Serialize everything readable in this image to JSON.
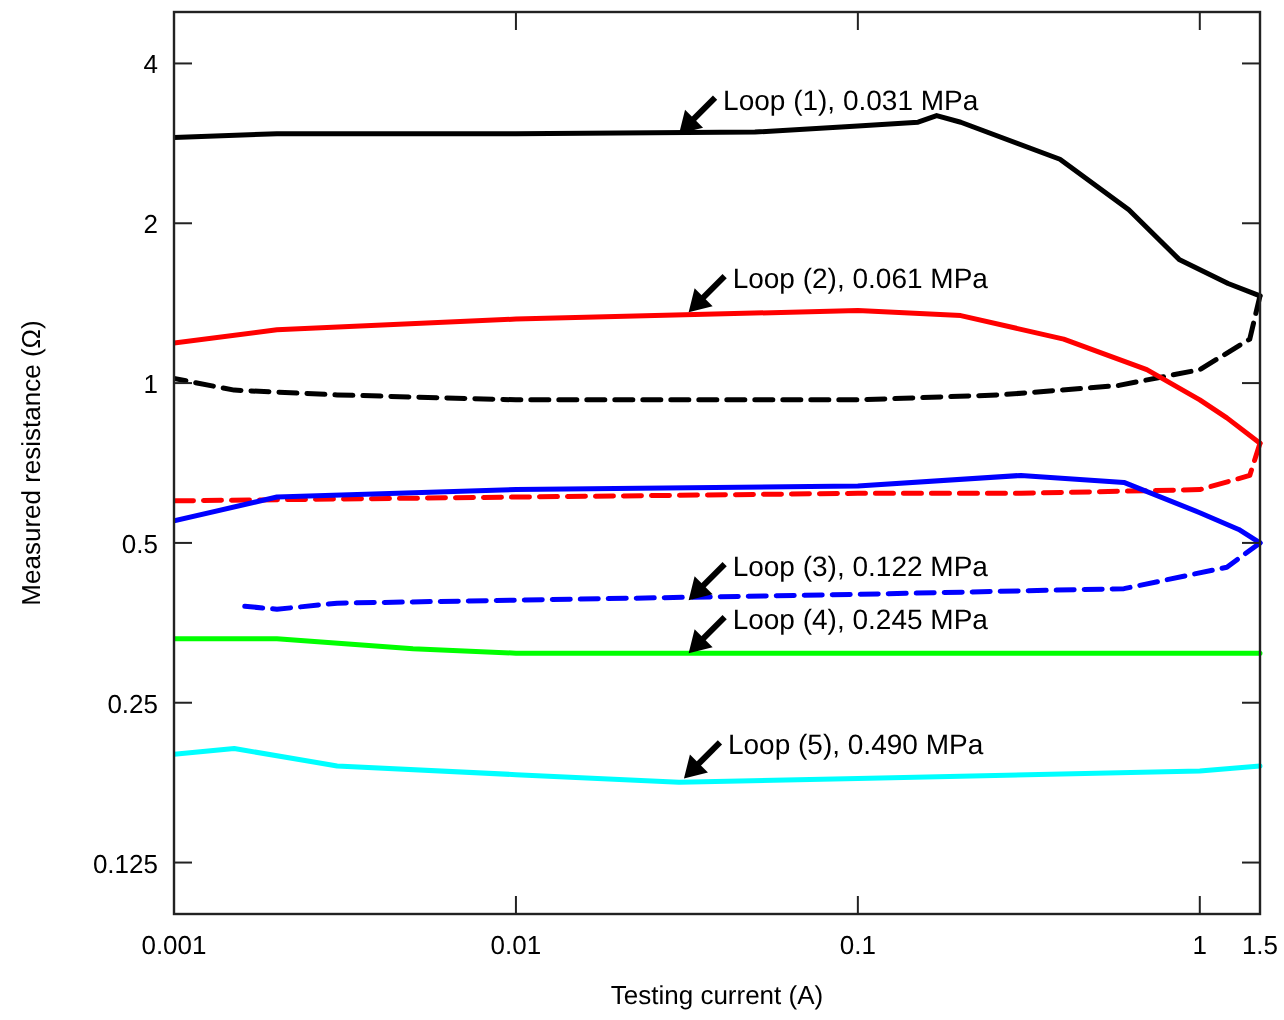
{
  "chart_data": {
    "type": "line",
    "xlabel": "Testing current (A)",
    "ylabel": "Measured resistance (Ω)",
    "log": "xy",
    "xlim": [
      0.001,
      1.5
    ],
    "ylim": [
      0.1,
      5
    ],
    "xticks": [
      0.001,
      0.01,
      0.1,
      1,
      1.5
    ],
    "yticks": [
      0.125,
      0.25,
      0.5,
      1,
      2,
      4
    ],
    "grid": false,
    "marker": "none",
    "series": [
      {
        "color": "#000000",
        "line_style": "solid",
        "x": [
          0.001,
          0.002,
          0.01,
          0.05,
          0.1,
          0.15,
          0.17,
          0.2,
          0.39,
          0.62,
          0.87,
          1.21,
          1.5
        ],
        "values": [
          2.9,
          2.95,
          2.95,
          2.97,
          3.05,
          3.1,
          3.19,
          3.1,
          2.64,
          2.12,
          1.71,
          1.54,
          1.46
        ]
      },
      {
        "color": "#000000",
        "line_style": "dashed",
        "x": [
          1.5,
          1.4,
          1.0,
          0.58,
          0.26,
          0.1,
          0.01,
          0.003,
          0.0015,
          0.001
        ],
        "values": [
          1.46,
          1.21,
          1.06,
          0.99,
          0.95,
          0.93,
          0.93,
          0.95,
          0.97,
          1.02
        ]
      },
      {
        "color": "#ff0000",
        "line_style": "solid",
        "x": [
          0.001,
          0.002,
          0.01,
          0.1,
          0.2,
          0.4,
          0.7,
          1.0,
          1.2,
          1.5
        ],
        "values": [
          1.19,
          1.26,
          1.32,
          1.37,
          1.34,
          1.21,
          1.06,
          0.93,
          0.86,
          0.77
        ]
      },
      {
        "color": "#ff0000",
        "line_style": "dashed",
        "x": [
          1.5,
          1.4,
          1.0,
          0.3,
          0.1,
          0.01,
          0.001
        ],
        "values": [
          0.77,
          0.67,
          0.63,
          0.62,
          0.62,
          0.61,
          0.6
        ]
      },
      {
        "color": "#0000ff",
        "line_style": "solid",
        "x": [
          0.001,
          0.002,
          0.01,
          0.1,
          0.3,
          0.6,
          1.0,
          1.3,
          1.5
        ],
        "values": [
          0.55,
          0.61,
          0.63,
          0.64,
          0.67,
          0.65,
          0.57,
          0.53,
          0.5
        ]
      },
      {
        "color": "#0000ff",
        "line_style": "dashed",
        "x": [
          1.5,
          1.2,
          0.6,
          0.1,
          0.01,
          0.003,
          0.002,
          0.0016
        ],
        "values": [
          0.5,
          0.45,
          0.41,
          0.4,
          0.39,
          0.385,
          0.375,
          0.38
        ]
      },
      {
        "color": "#00ff00",
        "line_style": "solid",
        "x": [
          0.001,
          0.002,
          0.005,
          0.01,
          0.1,
          1.5
        ],
        "values": [
          0.33,
          0.33,
          0.316,
          0.31,
          0.31,
          0.31
        ]
      },
      {
        "color": "#00ffff",
        "line_style": "solid",
        "x": [
          0.001,
          0.0015,
          0.003,
          0.01,
          0.03,
          0.1,
          1,
          1.5
        ],
        "values": [
          0.2,
          0.205,
          0.19,
          0.183,
          0.177,
          0.18,
          0.186,
          0.19
        ]
      }
    ],
    "annotations": [
      {
        "text": "Loop (1), 0.031 MPa",
        "x": 0.03,
        "y": 2.95
      },
      {
        "text": "Loop (2), 0.061 MPa",
        "x": 0.032,
        "y": 1.36
      },
      {
        "text": "Loop (3), 0.122 MPa",
        "x": 0.032,
        "y": 0.39
      },
      {
        "text": "Loop (4), 0.245 MPa",
        "x": 0.032,
        "y": 0.31
      },
      {
        "text": "Loop (5), 0.490 MPa",
        "x": 0.031,
        "y": 0.18
      }
    ]
  }
}
